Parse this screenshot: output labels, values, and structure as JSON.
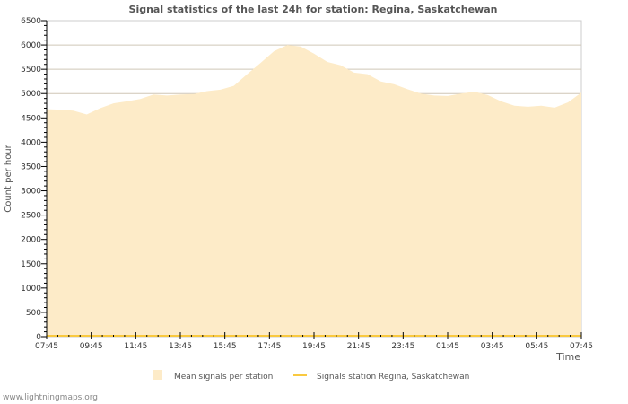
{
  "chart_data": {
    "type": "area",
    "title": "Signal statistics of the last 24h for station: Regina, Saskatchewan",
    "xlabel": "Time",
    "ylabel": "Count per hour",
    "ylim": [
      0,
      6500
    ],
    "yticks": [
      "0",
      "500",
      "1000",
      "1500",
      "2000",
      "2500",
      "3000",
      "3500",
      "4000",
      "4500",
      "5000",
      "5500",
      "6000",
      "6500"
    ],
    "xticks": [
      "07:45",
      "09:45",
      "11:45",
      "13:45",
      "15:45",
      "17:45",
      "19:45",
      "21:45",
      "23:45",
      "01:45",
      "03:45",
      "05:45",
      "07:45"
    ],
    "x_range_hours": [
      0,
      24
    ],
    "grid": true,
    "legend_placement": "bottom",
    "series": [
      {
        "name": "Mean signals per station",
        "kind": "area",
        "color": "#fdebc8",
        "values": [
          4680,
          4670,
          4650,
          4570,
          4700,
          4800,
          4840,
          4890,
          4980,
          4960,
          4980,
          4990,
          5050,
          5080,
          5160,
          5400,
          5630,
          5870,
          6000,
          5970,
          5820,
          5650,
          5580,
          5430,
          5400,
          5250,
          5190,
          5090,
          5000,
          4960,
          4950,
          5000,
          5040,
          4970,
          4840,
          4750,
          4730,
          4750,
          4710,
          4820,
          5020
        ]
      },
      {
        "name": "Signals station Regina, Saskatchewan",
        "kind": "line",
        "color": "#f9c940",
        "values": [
          0,
          0,
          0,
          0,
          0,
          0,
          0,
          0,
          0,
          0,
          0,
          0,
          0,
          0,
          0,
          0,
          0,
          0,
          0,
          0,
          0,
          0,
          0,
          0,
          0,
          0,
          0,
          0,
          0,
          0,
          0,
          0,
          0,
          0,
          0,
          0,
          0,
          0,
          0,
          0,
          0
        ]
      }
    ]
  },
  "footer": {
    "credit": "www.lightningmaps.org"
  }
}
